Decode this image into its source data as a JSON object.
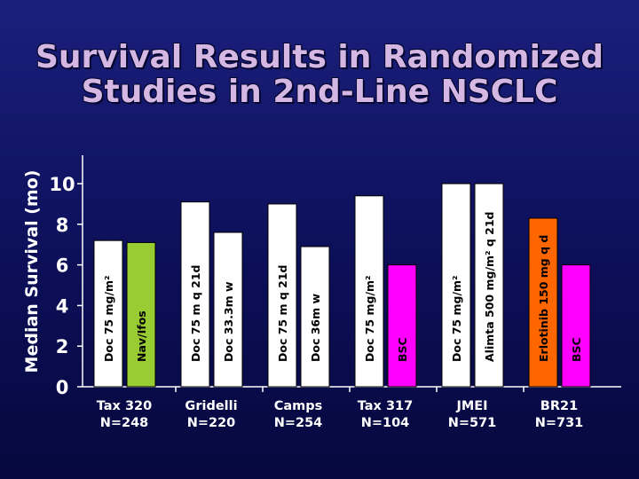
{
  "slide": {
    "title_line1": "Survival Results in Randomized",
    "title_line2": "Studies in 2nd-Line NSCLC"
  },
  "colors": {
    "background": "#10136a",
    "title": "#d4b8e3",
    "axis": "#ffffff",
    "docetaxel": "#ffffff",
    "vinflunine_ifosfamide": "#99cc33",
    "best_supportive_care": "#ff00ff",
    "gridelli_weekly": "#ffffff",
    "camps_weekly": "#ffffff",
    "pemetrexed": "#ffffff",
    "erlotinib": "#ff6600"
  },
  "chart_data": {
    "type": "bar",
    "title": "Survival Results in Randomized Studies in 2nd-Line NSCLC",
    "ylabel": "Median Survival (mo)",
    "ylim": [
      0,
      11.4
    ],
    "yticks": [
      0,
      2,
      4,
      6,
      8,
      10
    ],
    "grid": false,
    "legend": "none",
    "groups": [
      {
        "name": "Tax 320",
        "n": "N=248",
        "bars": [
          {
            "label": "Doc 75 mg/m²",
            "value": 7.2,
            "color": "#ffffff"
          },
          {
            "label": "Nav/Ifos",
            "value": 7.1,
            "color": "#99cc33"
          }
        ]
      },
      {
        "name": "Gridelli",
        "n": "N=220",
        "bars": [
          {
            "label": "Doc 75 m q 21d",
            "value": 9.1,
            "color": "#ffffff"
          },
          {
            "label": "Doc 33.3m w",
            "value": 7.6,
            "color": "#ffffff"
          }
        ]
      },
      {
        "name": "Camps",
        "n": "N=254",
        "bars": [
          {
            "label": "Doc 75 m q 21d",
            "value": 9.0,
            "color": "#ffffff"
          },
          {
            "label": "Doc 36m w",
            "value": 6.9,
            "color": "#ffffff"
          }
        ]
      },
      {
        "name": "Tax 317",
        "n": "N=104",
        "bars": [
          {
            "label": "Doc 75 mg/m²",
            "value": 9.4,
            "color": "#ffffff"
          },
          {
            "label": "BSC",
            "value": 6.0,
            "color": "#ff00ff"
          }
        ]
      },
      {
        "name": "JMEI",
        "n": "N=571",
        "bars": [
          {
            "label": "Doc 75 mg/m²",
            "value": 10.0,
            "color": "#ffffff"
          },
          {
            "label": "Alimta 500 mg/m² q 21d",
            "value": 10.0,
            "color": "#ffffff"
          }
        ]
      },
      {
        "name": "BR21",
        "n": "N=731",
        "bars": [
          {
            "label": "Erlotinib 150 mg q d",
            "value": 8.3,
            "color": "#ff6600"
          },
          {
            "label": "BSC",
            "value": 6.0,
            "color": "#ff00ff"
          }
        ]
      }
    ]
  }
}
